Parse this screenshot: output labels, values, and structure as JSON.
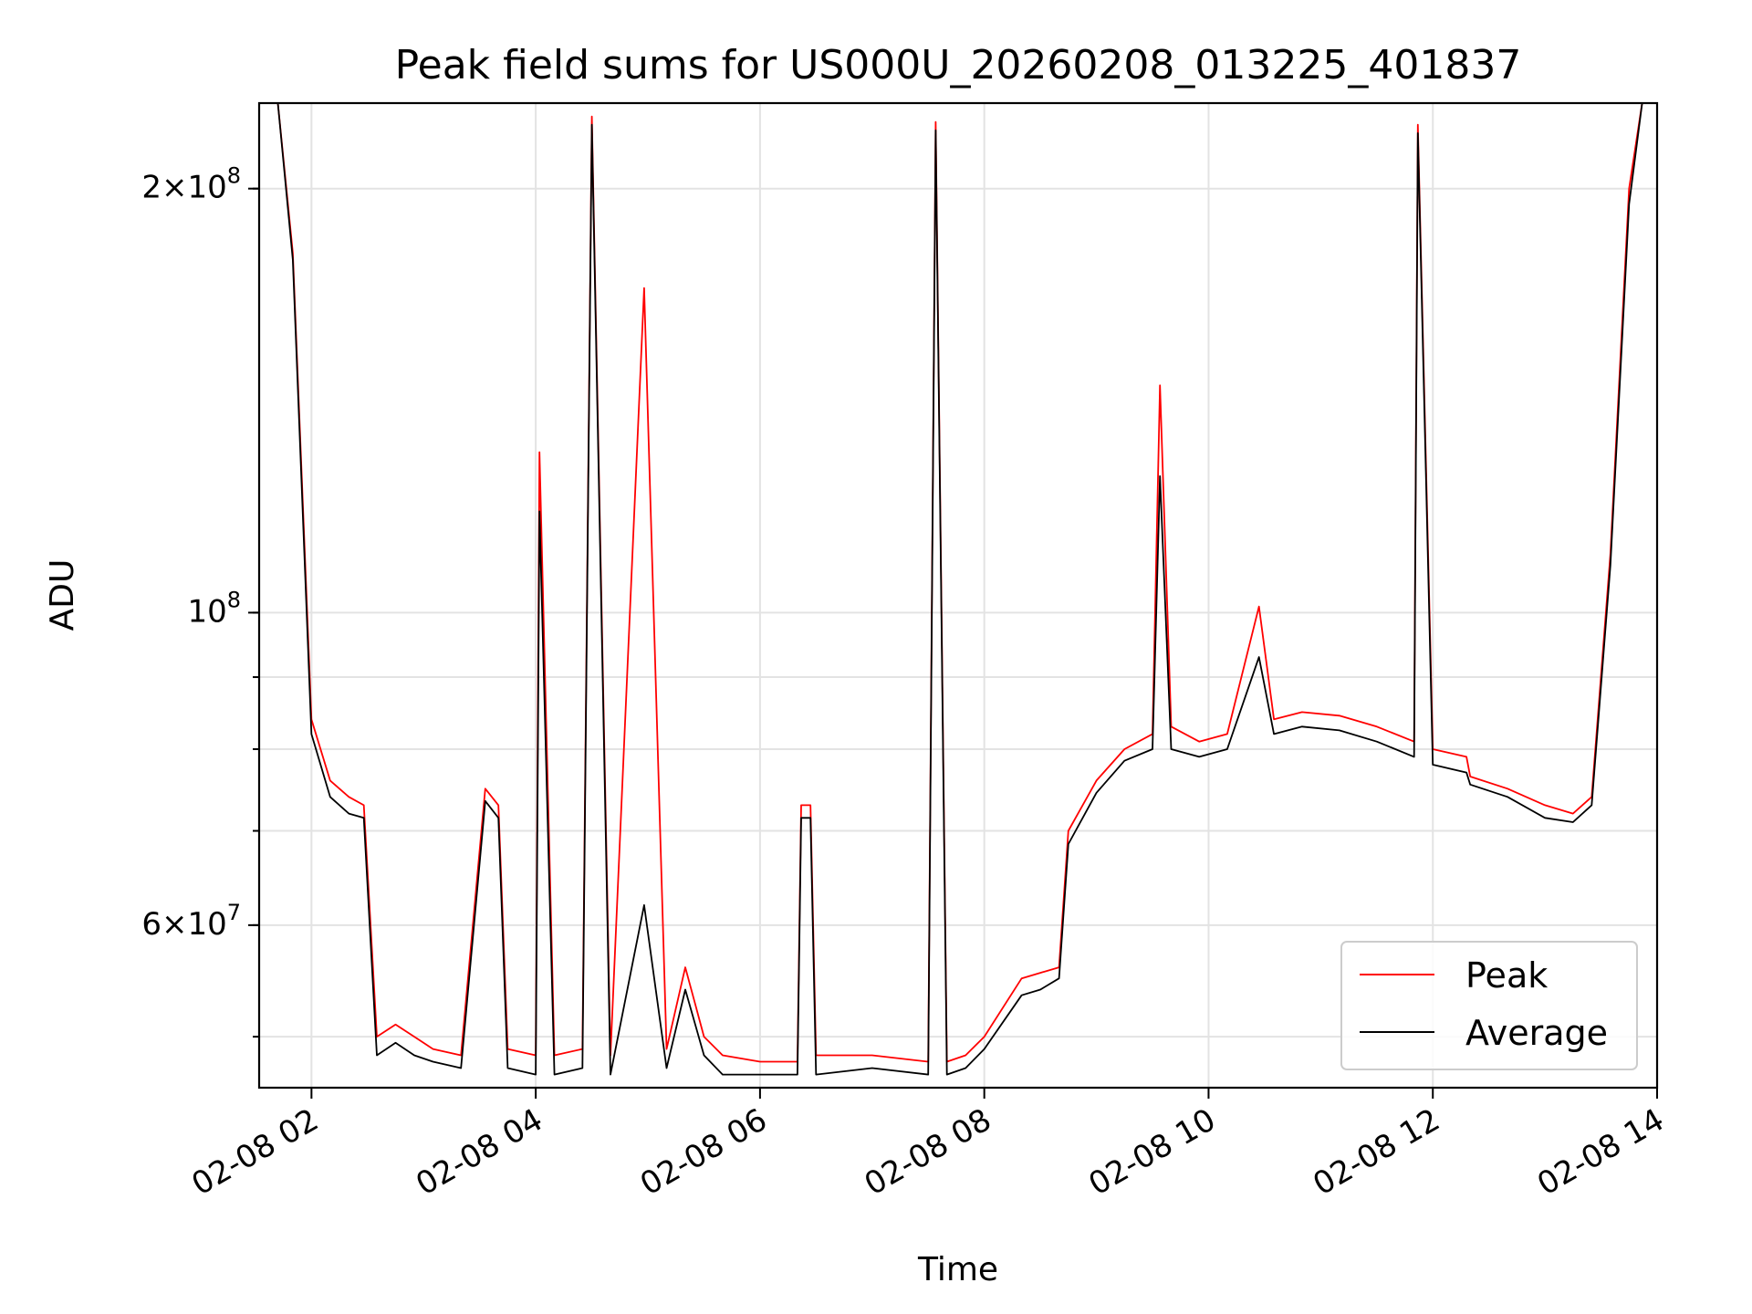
{
  "chart_data": {
    "type": "line",
    "title": "Peak field sums for US000U_20260208_013225_401837",
    "xlabel": "Time",
    "ylabel": "ADU",
    "xlim": [
      "02-08 01:32",
      "02-08 14:00"
    ],
    "ylim": [
      46000000,
      230000000
    ],
    "y_scale": "log",
    "grid": true,
    "legend_position": "lower right",
    "x_ticks": [
      "02-08 02",
      "02-08 04",
      "02-08 06",
      "02-08 08",
      "02-08 10",
      "02-08 12",
      "02-08 14"
    ],
    "y_ticks_major": [
      {
        "value": 200000000,
        "mantissa": "2",
        "exp": "8"
      },
      {
        "value": 100000000,
        "mantissa": "",
        "exp": "8"
      },
      {
        "value": 60000000,
        "mantissa": "6",
        "exp": "7"
      }
    ],
    "y_gridlines": [
      50000000,
      60000000,
      70000000,
      80000000,
      90000000,
      100000000,
      200000000
    ],
    "series": [
      {
        "name": "Peak",
        "color": "#ff0000",
        "x": [
          "02-08 01:42",
          "02-08 01:50",
          "02-08 02:00",
          "02-08 02:10",
          "02-08 02:20",
          "02-08 02:28",
          "02-08 02:35",
          "02-08 02:45",
          "02-08 02:55",
          "02-08 03:05",
          "02-08 03:20",
          "02-08 03:33",
          "02-08 03:40",
          "02-08 03:45",
          "02-08 04:00",
          "02-08 04:02",
          "02-08 04:10",
          "02-08 04:25",
          "02-08 04:30",
          "02-08 04:40",
          "02-08 04:58",
          "02-08 05:10",
          "02-08 05:20",
          "02-08 05:30",
          "02-08 05:40",
          "02-08 06:00",
          "02-08 06:20",
          "02-08 06:22",
          "02-08 06:27",
          "02-08 06:30",
          "02-08 07:00",
          "02-08 07:30",
          "02-08 07:34",
          "02-08 07:40",
          "02-08 07:50",
          "02-08 08:00",
          "02-08 08:20",
          "02-08 08:30",
          "02-08 08:40",
          "02-08 08:45",
          "02-08 09:00",
          "02-08 09:15",
          "02-08 09:30",
          "02-08 09:34",
          "02-08 09:40",
          "02-08 09:55",
          "02-08 10:10",
          "02-08 10:27",
          "02-08 10:35",
          "02-08 10:50",
          "02-08 11:10",
          "02-08 11:30",
          "02-08 11:50",
          "02-08 11:52",
          "02-08 12:00",
          "02-08 12:18",
          "02-08 12:20",
          "02-08 12:40",
          "02-08 13:00",
          "02-08 13:15",
          "02-08 13:25",
          "02-08 13:35",
          "02-08 13:45",
          "02-08 13:52"
        ],
        "values": [
          230000000,
          180000000,
          84000000,
          76000000,
          74000000,
          73000000,
          50000000,
          51000000,
          50000000,
          49000000,
          48500000,
          75000000,
          73000000,
          49000000,
          48500000,
          130000000,
          48500000,
          49000000,
          225000000,
          48500000,
          170000000,
          49000000,
          56000000,
          50000000,
          48500000,
          48000000,
          48000000,
          73000000,
          73000000,
          48500000,
          48500000,
          48000000,
          223000000,
          48000000,
          48500000,
          50000000,
          55000000,
          55500000,
          56000000,
          70000000,
          76000000,
          80000000,
          82000000,
          145000000,
          83000000,
          81000000,
          82000000,
          101000000,
          84000000,
          85000000,
          84500000,
          83000000,
          81000000,
          222000000,
          80000000,
          79000000,
          76500000,
          75000000,
          73000000,
          72000000,
          74000000,
          110000000,
          200000000,
          230000000
        ]
      },
      {
        "name": "Average",
        "color": "#000000",
        "x": [
          "02-08 01:42",
          "02-08 01:50",
          "02-08 02:00",
          "02-08 02:10",
          "02-08 02:20",
          "02-08 02:28",
          "02-08 02:35",
          "02-08 02:45",
          "02-08 02:55",
          "02-08 03:05",
          "02-08 03:20",
          "02-08 03:33",
          "02-08 03:40",
          "02-08 03:45",
          "02-08 04:00",
          "02-08 04:02",
          "02-08 04:10",
          "02-08 04:25",
          "02-08 04:30",
          "02-08 04:40",
          "02-08 04:58",
          "02-08 05:10",
          "02-08 05:20",
          "02-08 05:30",
          "02-08 05:40",
          "02-08 06:00",
          "02-08 06:20",
          "02-08 06:22",
          "02-08 06:27",
          "02-08 06:30",
          "02-08 07:00",
          "02-08 07:30",
          "02-08 07:34",
          "02-08 07:40",
          "02-08 07:50",
          "02-08 08:00",
          "02-08 08:20",
          "02-08 08:30",
          "02-08 08:40",
          "02-08 08:45",
          "02-08 09:00",
          "02-08 09:15",
          "02-08 09:30",
          "02-08 09:34",
          "02-08 09:40",
          "02-08 09:55",
          "02-08 10:10",
          "02-08 10:27",
          "02-08 10:35",
          "02-08 10:50",
          "02-08 11:10",
          "02-08 11:30",
          "02-08 11:50",
          "02-08 11:52",
          "02-08 12:00",
          "02-08 12:18",
          "02-08 12:20",
          "02-08 12:40",
          "02-08 13:00",
          "02-08 13:15",
          "02-08 13:25",
          "02-08 13:35",
          "02-08 13:45",
          "02-08 13:52"
        ],
        "values": [
          230000000,
          178000000,
          82000000,
          74000000,
          72000000,
          71500000,
          48500000,
          49500000,
          48500000,
          48000000,
          47500000,
          73500000,
          71500000,
          47500000,
          47000000,
          118000000,
          47000000,
          47500000,
          222000000,
          47000000,
          62000000,
          47500000,
          54000000,
          48500000,
          47000000,
          47000000,
          47000000,
          71500000,
          71500000,
          47000000,
          47500000,
          47000000,
          220000000,
          47000000,
          47500000,
          49000000,
          53500000,
          54000000,
          55000000,
          68500000,
          74500000,
          78500000,
          80000000,
          125000000,
          80000000,
          79000000,
          80000000,
          93000000,
          82000000,
          83000000,
          82500000,
          81000000,
          79000000,
          219000000,
          78000000,
          77000000,
          75500000,
          74000000,
          71500000,
          71000000,
          73000000,
          108000000,
          195000000,
          230000000
        ]
      }
    ]
  }
}
